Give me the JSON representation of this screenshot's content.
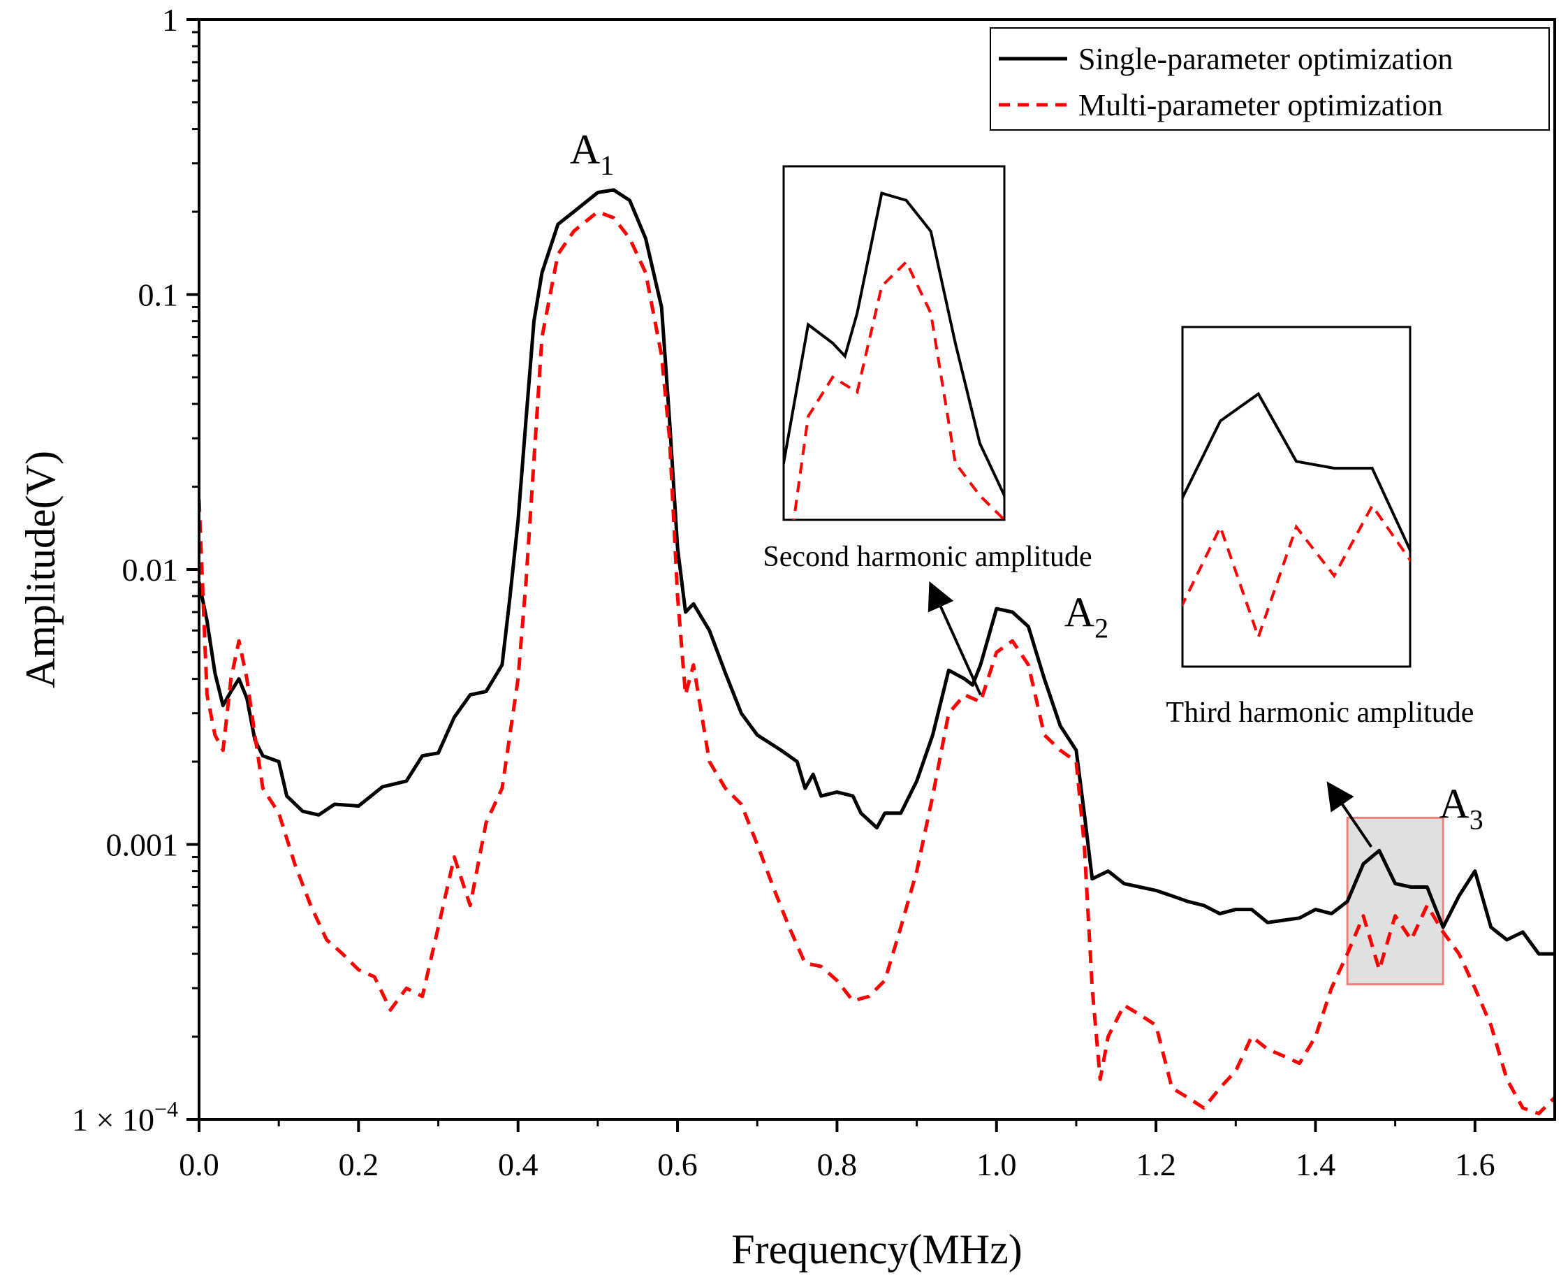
{
  "chart_data": {
    "type": "line",
    "title": "",
    "xlabel": "Frequency(MHz)",
    "ylabel": "Amplitude(V)",
    "xlim": [
      0.0,
      1.7
    ],
    "ylim": [
      0.0001,
      1
    ],
    "yscale": "log",
    "grid": false,
    "legend_position": "top-right",
    "x_ticks": [
      0.0,
      0.2,
      0.4,
      0.6,
      0.8,
      1.0,
      1.2,
      1.4,
      1.6
    ],
    "x_tick_labels": [
      "0.0",
      "0.2",
      "0.4",
      "0.6",
      "0.8",
      "1.0",
      "1.2",
      "1.4",
      "1.6"
    ],
    "y_ticks": [
      0.0001,
      0.001,
      0.01,
      0.1,
      1
    ],
    "y_tick_labels": [
      {
        "main": "1 × 10",
        "sup": "−4"
      },
      {
        "main": "0.001",
        "sup": ""
      },
      {
        "main": "0.01",
        "sup": ""
      },
      {
        "main": "0.1",
        "sup": ""
      },
      {
        "main": "1",
        "sup": ""
      }
    ],
    "series": [
      {
        "name": "Single-parameter optimization",
        "color": "#000000",
        "style": "solid",
        "points": [
          [
            0.0,
            0.009
          ],
          [
            0.01,
            0.0065
          ],
          [
            0.02,
            0.0042
          ],
          [
            0.03,
            0.0032
          ],
          [
            0.04,
            0.0036
          ],
          [
            0.05,
            0.004
          ],
          [
            0.06,
            0.0034
          ],
          [
            0.07,
            0.0024
          ],
          [
            0.08,
            0.0021
          ],
          [
            0.1,
            0.002
          ],
          [
            0.11,
            0.0015
          ],
          [
            0.13,
            0.00132
          ],
          [
            0.15,
            0.00128
          ],
          [
            0.17,
            0.0014
          ],
          [
            0.2,
            0.00138
          ],
          [
            0.23,
            0.00162
          ],
          [
            0.26,
            0.0017
          ],
          [
            0.28,
            0.0021
          ],
          [
            0.3,
            0.00215
          ],
          [
            0.32,
            0.0029
          ],
          [
            0.34,
            0.0035
          ],
          [
            0.36,
            0.0036
          ],
          [
            0.38,
            0.0045
          ],
          [
            0.39,
            0.008
          ],
          [
            0.4,
            0.015
          ],
          [
            0.41,
            0.035
          ],
          [
            0.42,
            0.08
          ],
          [
            0.43,
            0.12
          ],
          [
            0.45,
            0.18
          ],
          [
            0.47,
            0.2
          ],
          [
            0.5,
            0.235
          ],
          [
            0.52,
            0.24
          ],
          [
            0.54,
            0.22
          ],
          [
            0.56,
            0.16
          ],
          [
            0.58,
            0.09
          ],
          [
            0.59,
            0.035
          ],
          [
            0.6,
            0.012
          ],
          [
            0.61,
            0.007
          ],
          [
            0.62,
            0.0075
          ],
          [
            0.64,
            0.006
          ],
          [
            0.66,
            0.0042
          ],
          [
            0.68,
            0.003
          ],
          [
            0.7,
            0.0025
          ],
          [
            0.73,
            0.0022
          ],
          [
            0.75,
            0.002
          ],
          [
            0.76,
            0.0016
          ],
          [
            0.77,
            0.0018
          ],
          [
            0.78,
            0.0015
          ],
          [
            0.8,
            0.00155
          ],
          [
            0.82,
            0.0015
          ],
          [
            0.83,
            0.0013
          ],
          [
            0.85,
            0.00115
          ],
          [
            0.86,
            0.0013
          ],
          [
            0.88,
            0.0013
          ],
          [
            0.9,
            0.0017
          ],
          [
            0.92,
            0.0025
          ],
          [
            0.94,
            0.0043
          ],
          [
            0.96,
            0.004
          ],
          [
            0.97,
            0.0038
          ],
          [
            0.98,
            0.0045
          ],
          [
            1.0,
            0.0072
          ],
          [
            1.02,
            0.007
          ],
          [
            1.04,
            0.0062
          ],
          [
            1.06,
            0.004
          ],
          [
            1.08,
            0.0027
          ],
          [
            1.1,
            0.0022
          ],
          [
            1.11,
            0.0013
          ],
          [
            1.12,
            0.00075
          ],
          [
            1.14,
            0.0008
          ],
          [
            1.16,
            0.00072
          ],
          [
            1.18,
            0.0007
          ],
          [
            1.2,
            0.00068
          ],
          [
            1.22,
            0.00065
          ],
          [
            1.24,
            0.00062
          ],
          [
            1.26,
            0.0006
          ],
          [
            1.28,
            0.00056
          ],
          [
            1.3,
            0.00058
          ],
          [
            1.32,
            0.00058
          ],
          [
            1.34,
            0.00052
          ],
          [
            1.36,
            0.00053
          ],
          [
            1.38,
            0.00054
          ],
          [
            1.4,
            0.00058
          ],
          [
            1.42,
            0.00056
          ],
          [
            1.44,
            0.00062
          ],
          [
            1.46,
            0.00085
          ],
          [
            1.48,
            0.00095
          ],
          [
            1.5,
            0.00072
          ],
          [
            1.52,
            0.0007
          ],
          [
            1.54,
            0.0007
          ],
          [
            1.56,
            0.0005
          ],
          [
            1.58,
            0.00065
          ],
          [
            1.6,
            0.0008
          ],
          [
            1.62,
            0.0005
          ],
          [
            1.64,
            0.00045
          ],
          [
            1.66,
            0.00048
          ],
          [
            1.68,
            0.0004
          ],
          [
            1.7,
            0.0004
          ]
        ]
      },
      {
        "name": "Multi-parameter optimization",
        "color": "#ff0000",
        "style": "dashed",
        "points": [
          [
            0.0,
            0.018
          ],
          [
            0.01,
            0.0035
          ],
          [
            0.02,
            0.0025
          ],
          [
            0.03,
            0.0022
          ],
          [
            0.04,
            0.004
          ],
          [
            0.05,
            0.0055
          ],
          [
            0.06,
            0.004
          ],
          [
            0.07,
            0.0025
          ],
          [
            0.08,
            0.0016
          ],
          [
            0.1,
            0.0013
          ],
          [
            0.12,
            0.00085
          ],
          [
            0.14,
            0.0006
          ],
          [
            0.16,
            0.00045
          ],
          [
            0.18,
            0.0004
          ],
          [
            0.2,
            0.00035
          ],
          [
            0.22,
            0.00033
          ],
          [
            0.24,
            0.00025
          ],
          [
            0.26,
            0.0003
          ],
          [
            0.28,
            0.00028
          ],
          [
            0.3,
            0.0005
          ],
          [
            0.32,
            0.0009
          ],
          [
            0.34,
            0.0006
          ],
          [
            0.36,
            0.0012
          ],
          [
            0.38,
            0.0016
          ],
          [
            0.4,
            0.004
          ],
          [
            0.41,
            0.009
          ],
          [
            0.42,
            0.025
          ],
          [
            0.43,
            0.07
          ],
          [
            0.45,
            0.14
          ],
          [
            0.47,
            0.17
          ],
          [
            0.5,
            0.2
          ],
          [
            0.52,
            0.19
          ],
          [
            0.54,
            0.16
          ],
          [
            0.56,
            0.12
          ],
          [
            0.58,
            0.06
          ],
          [
            0.59,
            0.03
          ],
          [
            0.6,
            0.008
          ],
          [
            0.61,
            0.0035
          ],
          [
            0.62,
            0.0045
          ],
          [
            0.64,
            0.002
          ],
          [
            0.66,
            0.0016
          ],
          [
            0.68,
            0.0014
          ],
          [
            0.7,
            0.001
          ],
          [
            0.72,
            0.0007
          ],
          [
            0.74,
            0.0005
          ],
          [
            0.76,
            0.00037
          ],
          [
            0.78,
            0.00036
          ],
          [
            0.8,
            0.00032
          ],
          [
            0.82,
            0.00027
          ],
          [
            0.84,
            0.00028
          ],
          [
            0.86,
            0.00032
          ],
          [
            0.88,
            0.0005
          ],
          [
            0.9,
            0.0008
          ],
          [
            0.92,
            0.0015
          ],
          [
            0.94,
            0.003
          ],
          [
            0.96,
            0.0035
          ],
          [
            0.98,
            0.0033
          ],
          [
            1.0,
            0.005
          ],
          [
            1.02,
            0.0055
          ],
          [
            1.04,
            0.0045
          ],
          [
            1.06,
            0.0025
          ],
          [
            1.08,
            0.0022
          ],
          [
            1.1,
            0.002
          ],
          [
            1.11,
            0.001
          ],
          [
            1.12,
            0.0003
          ],
          [
            1.13,
            0.00014
          ],
          [
            1.14,
            0.0002
          ],
          [
            1.16,
            0.00026
          ],
          [
            1.18,
            0.00024
          ],
          [
            1.2,
            0.00022
          ],
          [
            1.22,
            0.00013
          ],
          [
            1.24,
            0.00012
          ],
          [
            1.26,
            0.00011
          ],
          [
            1.28,
            0.00013
          ],
          [
            1.3,
            0.00015
          ],
          [
            1.32,
            0.0002
          ],
          [
            1.34,
            0.00018
          ],
          [
            1.36,
            0.00017
          ],
          [
            1.38,
            0.00016
          ],
          [
            1.4,
            0.0002
          ],
          [
            1.42,
            0.0003
          ],
          [
            1.44,
            0.0004
          ],
          [
            1.46,
            0.00055
          ],
          [
            1.48,
            0.00035
          ],
          [
            1.5,
            0.00055
          ],
          [
            1.52,
            0.00045
          ],
          [
            1.54,
            0.0006
          ],
          [
            1.56,
            0.00048
          ],
          [
            1.58,
            0.0004
          ],
          [
            1.6,
            0.0003
          ],
          [
            1.62,
            0.00022
          ],
          [
            1.64,
            0.00014
          ],
          [
            1.66,
            0.00011
          ],
          [
            1.68,
            0.000105
          ],
          [
            1.7,
            0.00012
          ]
        ]
      }
    ],
    "peak_labels": [
      {
        "main": "A",
        "sub": "1",
        "x": 0.5,
        "y": 0.3
      },
      {
        "main": "A",
        "sub": "2",
        "x": 1.12,
        "y": 0.0062
      },
      {
        "main": "A",
        "sub": "3",
        "x": 1.59,
        "y": 0.00125
      }
    ],
    "highlight_box": {
      "x_range": [
        1.44,
        1.56
      ],
      "y_range": [
        0.00031,
        0.00125
      ],
      "color": "#e0e0e0"
    },
    "annotations": [
      {
        "id": "second",
        "text": "Second harmonic amplitude",
        "inset_x_range": [
          0.92,
          1.1
        ],
        "inset_y_range": [
          0.002,
          0.008
        ],
        "arrow_from": [
          0.98,
          0.0035
        ],
        "arrow_to": [
          0.92,
          0.0085
        ]
      },
      {
        "id": "third",
        "text": "Third harmonic amplitude",
        "inset_x_range": [
          1.44,
          1.56
        ],
        "inset_y_range": [
          0.00031,
          0.00125
        ],
        "arrow_from": [
          1.47,
          0.00098
        ],
        "arrow_to": [
          1.42,
          0.0016
        ]
      }
    ]
  }
}
